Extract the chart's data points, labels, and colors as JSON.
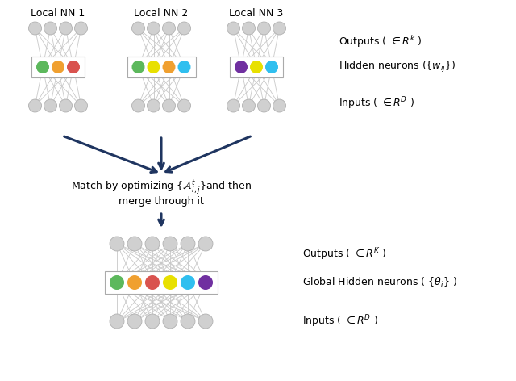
{
  "bg_color": "#ffffff",
  "arrow_color": "#1f3560",
  "node_color": "#d0d0d0",
  "node_edge": "#b0b0b0",
  "title_local1": "Local NN 1",
  "title_local2": "Local NN 2",
  "title_local3": "Local NN 3",
  "nn1_hidden_colors": [
    "#5cb85c",
    "#f0a030",
    "#d9534f"
  ],
  "nn2_hidden_colors": [
    "#5cb85c",
    "#e8e000",
    "#f0a030",
    "#30bfef"
  ],
  "nn3_hidden_colors": [
    "#7030a0",
    "#e8e000",
    "#30bfef"
  ],
  "global_hidden_colors": [
    "#5cb85c",
    "#f0a030",
    "#d9534f",
    "#e8e000",
    "#30bfef",
    "#7030a0"
  ]
}
